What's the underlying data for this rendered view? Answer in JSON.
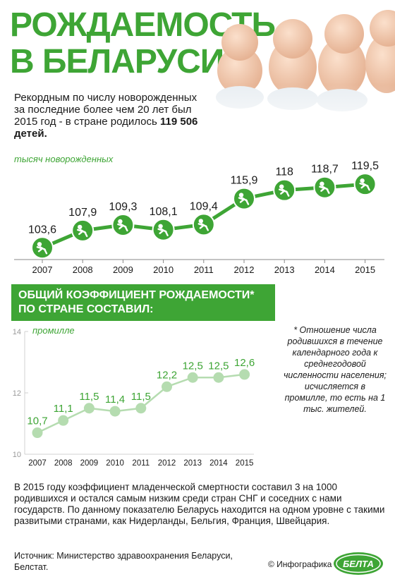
{
  "header": {
    "title_line1": "РОЖДАЕМОСТЬ",
    "title_line2": "В БЕЛАРУСИ"
  },
  "intro": {
    "text": "Рекордным по числу новорожденных за последние более чем 20 лет был 2015 год - в стране родилось ",
    "highlight": "119 506 детей."
  },
  "section2": {
    "banner_line1": "ОБЩИЙ КОЭФФИЦИЕНТ РОЖДАЕМОСТИ*",
    "banner_line2": "ПО СТРАНЕ СОСТАВИЛ:"
  },
  "footnote": "* Отношение числа родившихся в течение календарного года к среднегодовой численности населения; исчисляется в промилле, то есть на 1 тыс. жителей.",
  "paragraph": "В 2015 году коэффициент младенческой смертности составил 3 на 1000 родившихся и остался самым низким среди стран СНГ и соседних с нами государств. По данному показателю Беларусь находится на одном уровне с такими развитыми странами, как Нидерланды, Бельгия, Франция, Швейцария.",
  "footer": {
    "source": "Источник: Министерство здравоохранения Беларуси, Белстат.",
    "credit": "© Инфографика",
    "logo_text": "БЕЛТА"
  },
  "colors": {
    "accent": "#3ea535",
    "marker_light": "#b5dcb0",
    "axis": "#888888",
    "grid": "#d0d0d0"
  },
  "icons": {
    "marker": "crawling-baby-icon",
    "photo": "babies-photo"
  },
  "chart_data": [
    {
      "type": "line",
      "ylabel": "тысяч новорожденных",
      "x": [
        "2007",
        "2008",
        "2009",
        "2010",
        "2011",
        "2012",
        "2013",
        "2014",
        "2015"
      ],
      "series": [
        {
          "values": [
            103.6,
            107.9,
            109.3,
            108.1,
            109.4,
            115.9,
            118,
            118.7,
            119.5
          ]
        }
      ],
      "labels": [
        "103,6",
        "107,9",
        "109,3",
        "108,1",
        "109,4",
        "115,9",
        "118",
        "118,7",
        "119,5"
      ],
      "ylim": [
        95,
        125
      ],
      "grid": false,
      "legend": "none"
    },
    {
      "type": "line",
      "ylabel": "промилле",
      "x": [
        "2007",
        "2008",
        "2009",
        "2010",
        "2011",
        "2012",
        "2013",
        "2014",
        "2015"
      ],
      "series": [
        {
          "values": [
            10.7,
            11.1,
            11.5,
            11.4,
            11.5,
            12.2,
            12.5,
            12.5,
            12.6
          ]
        }
      ],
      "labels": [
        "10,7",
        "11,1",
        "11,5",
        "11,4",
        "11,5",
        "12,2",
        "12,5",
        "12,5",
        "12,6"
      ],
      "yticks": [
        "10",
        "12",
        "14"
      ],
      "ylim": [
        10,
        14
      ],
      "grid": true,
      "legend": "none"
    }
  ]
}
